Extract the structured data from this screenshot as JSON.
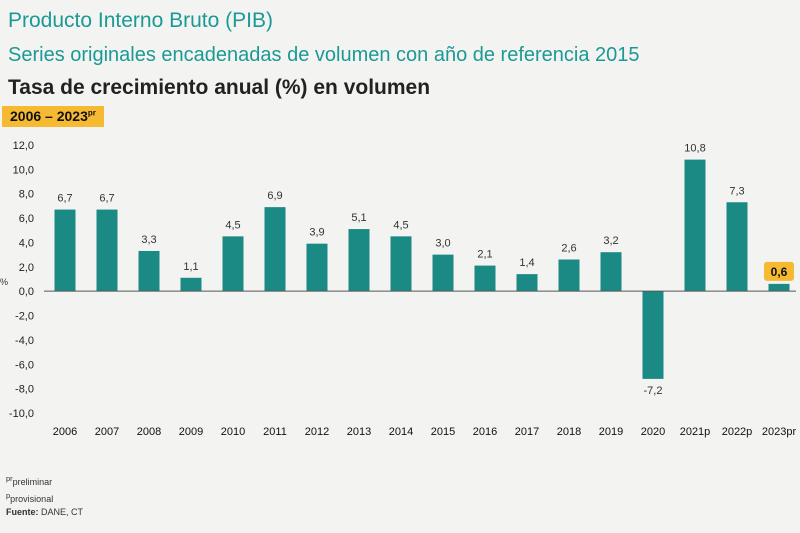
{
  "header": {
    "title": "Producto Interno Bruto (PIB)",
    "subtitle": "Series originales encadenadas de volumen con año de referencia 2015",
    "measure": "Tasa de crecimiento anual (%) en volumen",
    "period_text": "2006 – 2023",
    "period_superscript": "pr"
  },
  "chart_data": {
    "type": "bar",
    "title": "Tasa de crecimiento anual (%) en volumen",
    "xlabel": "",
    "ylabel": "%",
    "ylim": [
      -10,
      12
    ],
    "yticks": [
      12,
      10,
      8,
      6,
      4,
      2,
      0,
      -2,
      -4,
      -6,
      -8,
      -10
    ],
    "ytick_labels": [
      "12,0",
      "10,0",
      "8,0",
      "6,0",
      "4,0",
      "2,0",
      "0,0",
      "-2,0",
      "-4,0",
      "-6,0",
      "-8,0",
      "-10,0"
    ],
    "categories": [
      "2006",
      "2007",
      "2008",
      "2009",
      "2010",
      "2011",
      "2012",
      "2013",
      "2014",
      "2015",
      "2016",
      "2017",
      "2018",
      "2019",
      "2020",
      "2021p",
      "2022p",
      "2023pr"
    ],
    "values": [
      6.7,
      6.7,
      3.3,
      1.1,
      4.5,
      6.9,
      3.9,
      5.1,
      4.5,
      3.0,
      2.1,
      1.4,
      2.6,
      3.2,
      -7.2,
      10.8,
      7.3,
      0.6
    ],
    "data_labels": [
      "6,7",
      "6,7",
      "3,3",
      "1,1",
      "4,5",
      "6,9",
      "3,9",
      "5,1",
      "4,5",
      "3,0",
      "2,1",
      "1,4",
      "2,6",
      "3,2",
      "-7,2",
      "10,8",
      "7,3",
      "0,6"
    ],
    "highlight_index": 17,
    "colors": {
      "bar": "#1b8a85",
      "highlight_label_bg": "#f5b932",
      "axis": "#555555"
    }
  },
  "notes": {
    "pr_mark": "pr",
    "pr_text": "preliminar",
    "p_mark": "p",
    "p_text": "provisional",
    "source_label": "Fuente:",
    "source_value": " DANE, CT"
  }
}
